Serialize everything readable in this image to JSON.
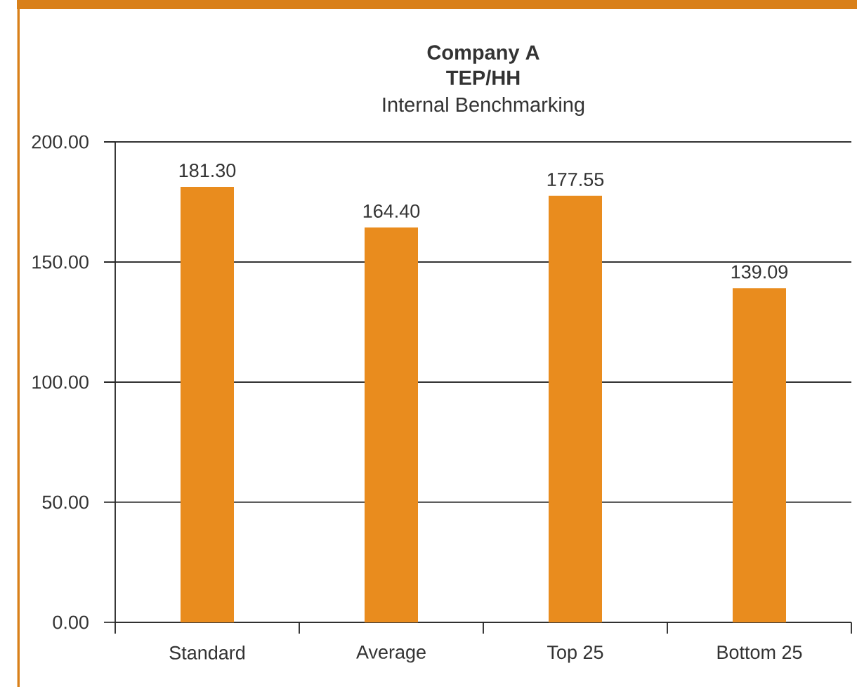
{
  "chart_data": {
    "type": "bar",
    "title": "Company A TEP/HH",
    "subtitle": "Internal Benchmarking",
    "categories": [
      "Standard",
      "Average",
      "Top 25",
      "Bottom 25"
    ],
    "values": [
      181.3,
      164.4,
      177.55,
      139.09
    ],
    "value_labels": [
      "181.30",
      "164.40",
      "177.55",
      "139.09"
    ],
    "color": "#e98c1e",
    "ylim": [
      0,
      200
    ],
    "yticks": [
      {
        "value": 0,
        "label": "0.00"
      },
      {
        "value": 50,
        "label": "50.00"
      },
      {
        "value": 100,
        "label": "100.00"
      },
      {
        "value": 150,
        "label": "150.00"
      },
      {
        "value": 200,
        "label": "200.00"
      }
    ],
    "grid": "y"
  }
}
